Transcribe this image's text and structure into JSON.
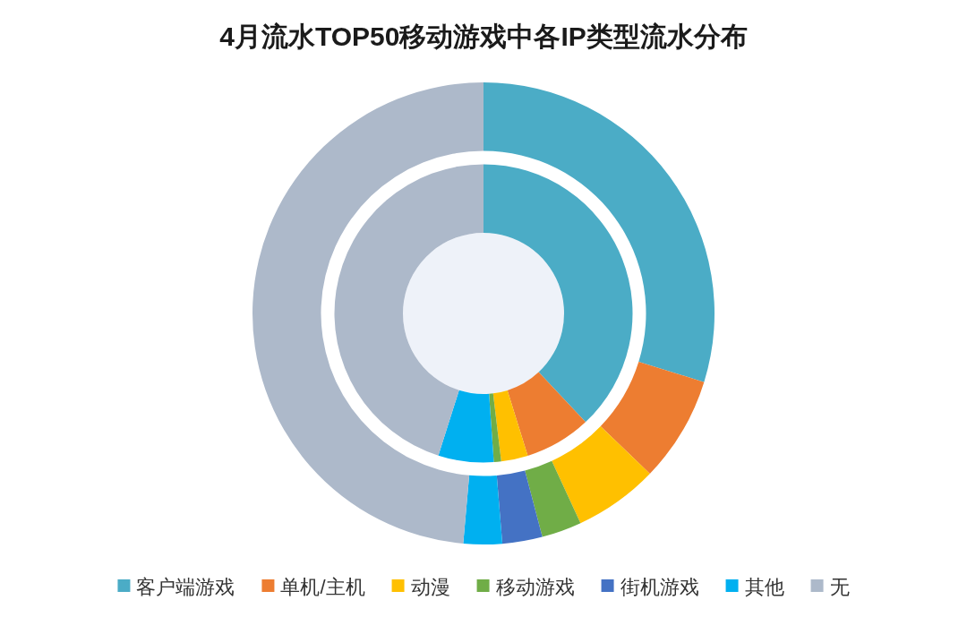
{
  "chart_data": {
    "type": "donut",
    "title": "4月流水TOP50移动游戏中各IP类型流水分布",
    "categories": [
      "客户端游戏",
      "单机/主机",
      "动漫",
      "移动游戏",
      "街机游戏",
      "其他",
      "无"
    ],
    "series": [
      {
        "values": [
          38.0,
          7.2,
          2.9,
          0.8,
          0,
          6.0,
          45.1
        ]
      },
      {
        "values": [
          29.8,
          7.4,
          5.9,
          2.8,
          2.8,
          2.7,
          48.6
        ]
      }
    ],
    "colors": [
      "#4bacc6",
      "#ed7d31",
      "#ffc000",
      "#70ad47",
      "#4472c4",
      "#00b0f0",
      "#adb9ca"
    ],
    "legend": "bottom"
  }
}
